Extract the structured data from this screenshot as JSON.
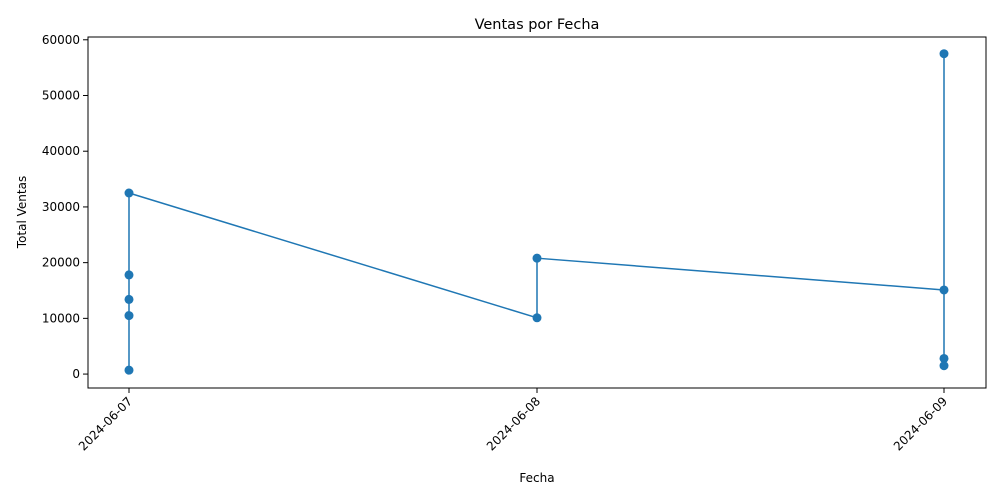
{
  "chart_data": {
    "type": "line",
    "title": "Ventas por Fecha",
    "xlabel": "Fecha",
    "ylabel": "Total Ventas",
    "x_ticks": [
      "2024-06-07",
      "2024-06-08",
      "2024-06-09"
    ],
    "y_ticks": [
      0,
      10000,
      20000,
      30000,
      40000,
      50000,
      60000
    ],
    "ylim": [
      -2500,
      60500
    ],
    "grid": false,
    "marker": "circle",
    "series": [
      {
        "color": "#1f77b4",
        "points": [
          {
            "x": "2024-06-07",
            "y": 700
          },
          {
            "x": "2024-06-07",
            "y": 10500
          },
          {
            "x": "2024-06-07",
            "y": 13400
          },
          {
            "x": "2024-06-07",
            "y": 17800
          },
          {
            "x": "2024-06-07",
            "y": 32500
          },
          {
            "x": "2024-06-08",
            "y": 10100
          },
          {
            "x": "2024-06-08",
            "y": 20800
          },
          {
            "x": "2024-06-09",
            "y": 15100
          },
          {
            "x": "2024-06-09",
            "y": 57500
          },
          {
            "x": "2024-06-09",
            "y": 2800
          },
          {
            "x": "2024-06-09",
            "y": 1500
          }
        ]
      }
    ]
  }
}
